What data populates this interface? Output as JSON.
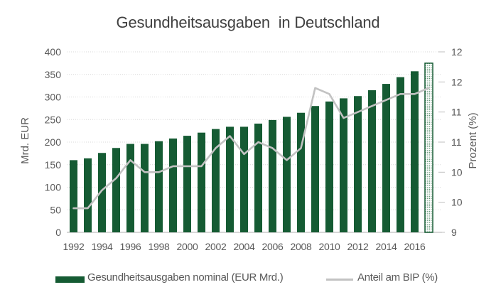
{
  "title": "Gesundheitsausgaben  in Deutschland",
  "legend": {
    "bars_label": "Gesundheitsausgaben nominal (EUR Mrd.)",
    "line_label": "Anteil am BIP (%)"
  },
  "colors": {
    "bar": "#155B33",
    "bar_pattern_dot": "#3D7D55",
    "line": "#C2C2C2",
    "grid": "#D9D9D9",
    "axis_line": "#BFBFBF",
    "tick_text": "#595959",
    "title_text": "#404040"
  },
  "chart_data": {
    "type": "combo",
    "title": "Gesundheitsausgaben  in Deutschland",
    "categories": [
      1992,
      1993,
      1994,
      1995,
      1996,
      1997,
      1998,
      1999,
      2000,
      2001,
      2002,
      2003,
      2004,
      2005,
      2006,
      2007,
      2008,
      2009,
      2010,
      2011,
      2012,
      2013,
      2014,
      2015,
      2016,
      2017
    ],
    "series": [
      {
        "name": "Gesundheitsausgaben nominal (EUR Mrd.)",
        "type": "bar",
        "axis": "left",
        "values": [
          160,
          164,
          176,
          187,
          196,
          196,
          202,
          208,
          214,
          221,
          229,
          234,
          234,
          241,
          249,
          256,
          265,
          280,
          290,
          297,
          302,
          315,
          329,
          344,
          357,
          375
        ],
        "last_bar_patterned": true
      },
      {
        "name": "Anteil am BIP (%)",
        "type": "line",
        "axis": "right",
        "values": [
          9.4,
          9.4,
          9.7,
          9.9,
          10.2,
          10.0,
          10.0,
          10.1,
          10.1,
          10.1,
          10.4,
          10.6,
          10.3,
          10.5,
          10.4,
          10.2,
          10.4,
          11.4,
          11.3,
          10.9,
          11.0,
          11.1,
          11.2,
          11.3,
          11.3,
          11.4
        ]
      }
    ],
    "left_axis": {
      "title": "Mrd. EUR",
      "min": 0,
      "max": 400,
      "step": 50,
      "tick_labels_top_to_bottom": [
        "400",
        "350",
        "300",
        "250",
        "200",
        "150",
        "100",
        "50",
        "0"
      ]
    },
    "right_axis": {
      "title": "Prozent (%)",
      "min": 9,
      "max": 12,
      "step": 0.5,
      "tick_labels_top_to_bottom": [
        "12",
        "12",
        "11",
        "11",
        "10",
        "10",
        "9"
      ]
    },
    "x_axis": {
      "tick_labels": [
        "1992",
        "1994",
        "1996",
        "1998",
        "2000",
        "2002",
        "2004",
        "2006",
        "2008",
        "2010",
        "2012",
        "2014",
        "2016"
      ]
    },
    "grid": true,
    "legend_position": "bottom"
  }
}
